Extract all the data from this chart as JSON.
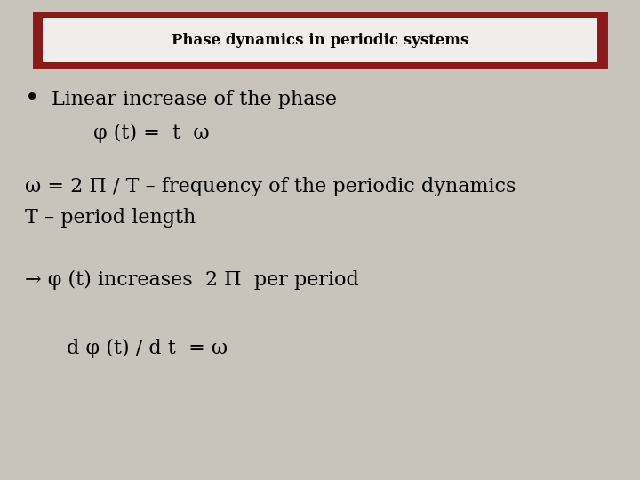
{
  "title": "Phase dynamics in periodic systems",
  "title_box_bg": "#f0eeea",
  "title_box_border": "#8b1a1a",
  "bg_color": "#c8c4bc",
  "title_fontsize": 12,
  "content_fontsize": 16,
  "bullet1": "Linear increase of the phase",
  "line1": "φ (t) =  t  ω",
  "line2": "ω = 2 Π / T – frequency of the periodic dynamics",
  "line3": "T – period length",
  "line4": "→ φ (t) increases  2 Π  per period",
  "line5": "d φ (t) / d t  = ω"
}
